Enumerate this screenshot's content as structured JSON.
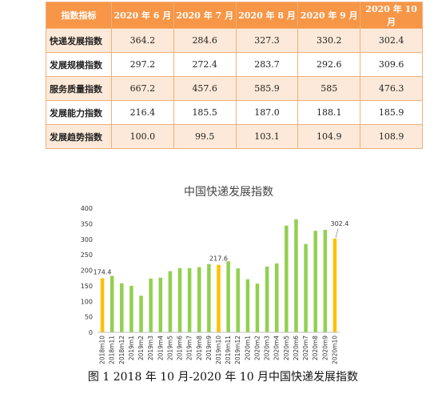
{
  "table": {
    "headers": [
      "指数指标",
      "2020 年 6 月",
      "2020 年 7 月",
      "2020 年 8 月",
      "2020 年 9 月",
      "2020 年 10 月"
    ],
    "rows": [
      {
        "label": "快递发展指数",
        "values": [
          "364.2",
          "284.6",
          "327.3",
          "330.2",
          "302.4"
        ]
      },
      {
        "label": "发展规模指数",
        "values": [
          "297.2",
          "272.4",
          "283.7",
          "292.6",
          "309.6"
        ]
      },
      {
        "label": "服务质量指数",
        "values": [
          "667.2",
          "457.6",
          "585.9",
          "585",
          "476.3"
        ]
      },
      {
        "label": "发展能力指数",
        "values": [
          "216.4",
          "185.5",
          "187.0",
          "188.1",
          "185.9"
        ]
      },
      {
        "label": "发展趋势指数",
        "values": [
          "100.0",
          "99.5",
          "103.1",
          "104.9",
          "108.9"
        ]
      }
    ]
  },
  "chart_data": {
    "type": "bar",
    "title": "中国快递发展指数",
    "categories": [
      "2018m10",
      "2018m11",
      "2018m12",
      "2019m1",
      "2019m2",
      "2019m3",
      "2019m4",
      "2019m5",
      "2019m6",
      "2019m7",
      "2019m8",
      "2019m9",
      "2019m10",
      "2019m11",
      "2019m12",
      "2020m1",
      "2020m2",
      "2020m3",
      "2020m4",
      "2020m5",
      "2020m6",
      "2020m7",
      "2020m8",
      "2020m9",
      "2020m10"
    ],
    "values": [
      174.4,
      182,
      158,
      150,
      118,
      173,
      176,
      197,
      207,
      207,
      210,
      220,
      217.6,
      229,
      206,
      171,
      157,
      212,
      222,
      344,
      364.2,
      284.6,
      327.3,
      330.2,
      302.4
    ],
    "highlight": [
      0,
      12,
      24
    ],
    "data_labels": {
      "0": "174.4",
      "12": "217.6",
      "24": "302.4"
    },
    "ylim": [
      0,
      400
    ],
    "yticks": [
      0,
      50,
      100,
      150,
      200,
      250,
      300,
      350,
      400
    ],
    "grid": false,
    "colors": {
      "normal": "#92d050",
      "highlight": "#ffc000"
    }
  },
  "caption": "图 1   2018 年 10 月-2020 年 10 月中国快递发展指数"
}
